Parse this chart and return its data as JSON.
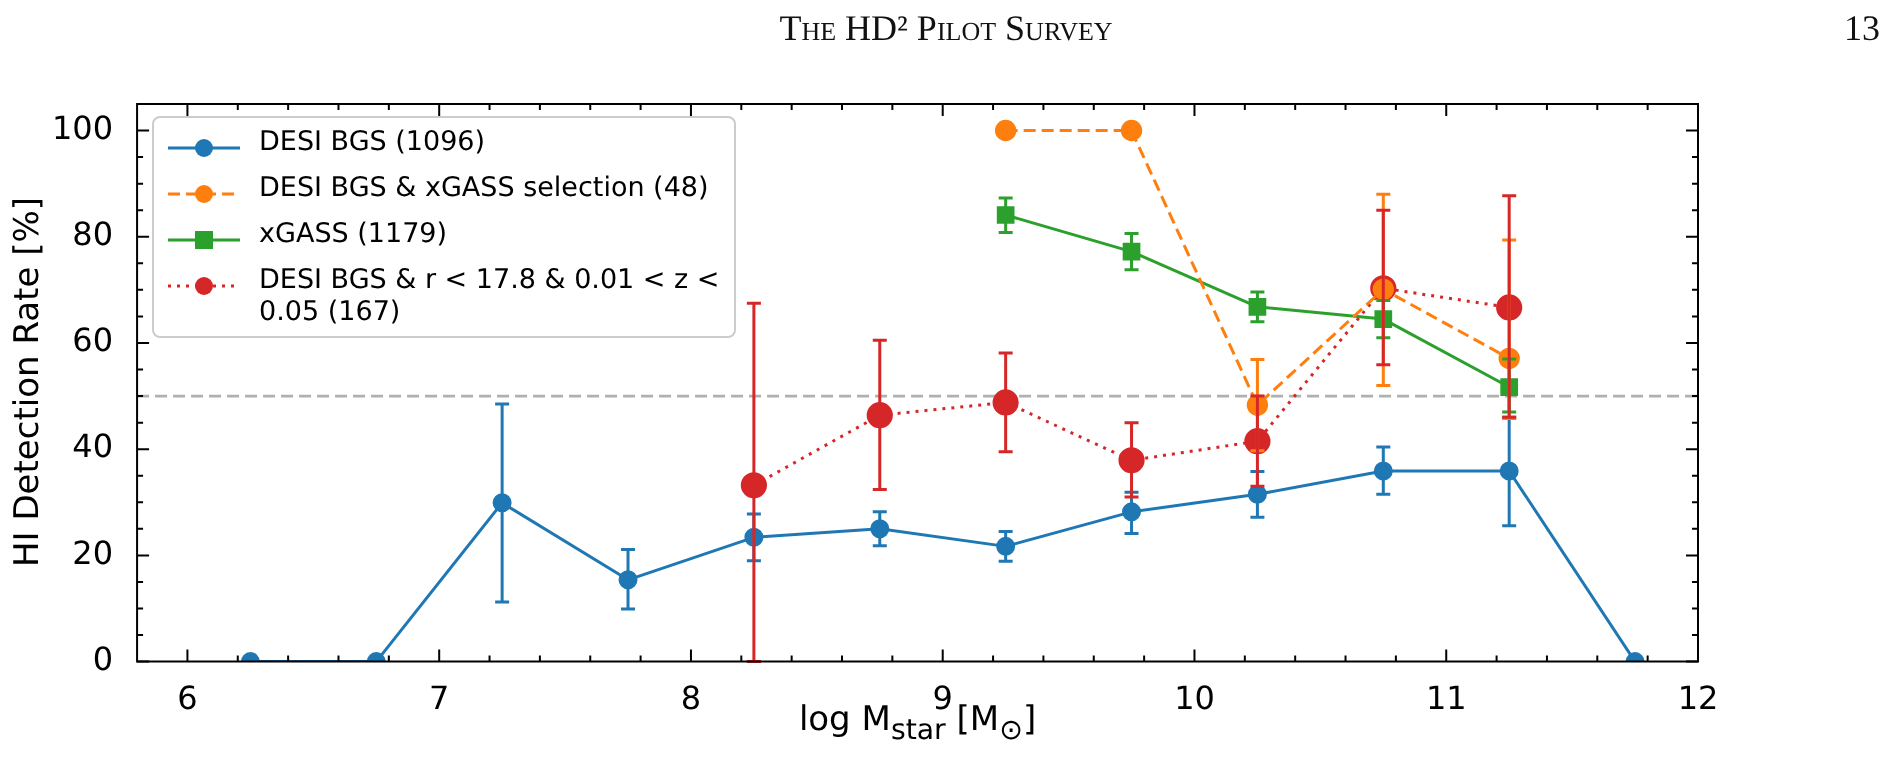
{
  "chart_data": {
    "type": "line",
    "xlabel": "log M$_{star}$ [M$_{⊙}$]",
    "ylabel": "HI Detection Rate [%]",
    "annotations": [
      "The HD² Pilot Survey",
      "13"
    ],
    "xlim": [
      5.8,
      12
    ],
    "ylim": [
      0,
      105
    ],
    "xticks": [
      6,
      {
        "value": 6.2,
        "label": null
      },
      {
        "value": 6.4,
        "label": null
      },
      {
        "value": 6.6,
        "label": null
      },
      {
        "value": 6.8,
        "label": null
      },
      7,
      {
        "value": 7.2,
        "label": null
      },
      {
        "value": 7.4,
        "label": null
      },
      {
        "value": 7.6,
        "label": null
      },
      {
        "value": 7.8,
        "label": null
      },
      8,
      {
        "value": 8.2,
        "label": null
      },
      {
        "value": 8.4,
        "label": null
      },
      {
        "value": 8.6,
        "label": null
      },
      {
        "value": 8.8,
        "label": null
      },
      9,
      {
        "value": 9.2,
        "label": null
      },
      {
        "value": 9.4,
        "label": null
      },
      {
        "value": 9.6,
        "label": null
      },
      {
        "value": 9.8,
        "label": null
      },
      10,
      {
        "value": 10.2,
        "label": null
      },
      {
        "value": 10.4,
        "label": null
      },
      {
        "value": 10.6,
        "label": null
      },
      {
        "value": 10.8,
        "label": null
      },
      11,
      {
        "value": 11.2,
        "label": null
      },
      {
        "value": 11.4,
        "label": null
      },
      {
        "value": 11.6,
        "label": null
      },
      {
        "value": 11.8,
        "label": null
      },
      12
    ],
    "yticks": [
      0,
      {
        "value": 5,
        "label": null
      },
      {
        "value": 10,
        "label": null
      },
      {
        "value": 15,
        "label": null
      },
      20,
      {
        "value": 25,
        "label": null
      },
      {
        "value": 30,
        "label": null
      },
      {
        "value": 35,
        "label": null
      },
      40,
      {
        "value": 45,
        "label": null
      },
      {
        "value": 50,
        "label": null
      },
      {
        "value": 55,
        "label": null
      },
      60,
      {
        "value": 65,
        "label": null
      },
      {
        "value": 70,
        "label": null
      },
      {
        "value": 75,
        "label": null
      },
      80,
      {
        "value": 85,
        "label": null
      },
      {
        "value": 90,
        "label": null
      },
      {
        "value": 95,
        "label": null
      },
      100
    ],
    "grid": false,
    "legend": "top left",
    "ref_lines": [
      {
        "axis": "y",
        "value": 50,
        "color": "#b0b0b0",
        "line_style": "dashed"
      }
    ],
    "series": [
      {
        "name": "DESI BGS (1096)",
        "color": "#1f77b4",
        "marker": "circle",
        "line_style": "solid",
        "x": [
          6.25,
          6.75,
          7.25,
          7.75,
          8.25,
          8.75,
          9.25,
          9.75,
          10.25,
          10.75,
          11.25,
          11.75
        ],
        "values": [
          0,
          0,
          29.9,
          15.4,
          23.4,
          25,
          21.7,
          28.2,
          31.5,
          35.9,
          35.9,
          0
        ],
        "errors": [
          null,
          null,
          [
            11.2,
            48.5
          ],
          [
            9.9,
            21.1
          ],
          [
            19,
            27.8
          ],
          [
            21.8,
            28.2
          ],
          [
            18.9,
            24.5
          ],
          [
            24.1,
            31.9
          ],
          [
            27.2,
            35.8
          ],
          [
            31.5,
            40.4
          ],
          [
            25.6,
            46
          ],
          null
        ]
      },
      {
        "name": "DESI BGS & xGASS selection (48)",
        "color": "#ff7f0e",
        "marker": "circle",
        "line_style": "dashed",
        "x": [
          9.25,
          9.75,
          10.25,
          10.75,
          11.25
        ],
        "values": [
          100,
          100,
          48.3,
          70.1,
          57.1
        ],
        "errors": [
          null,
          null,
          [
            39.7,
            56.9
          ],
          [
            52,
            88
          ],
          [
            45.8,
            79.4
          ]
        ]
      },
      {
        "name": "xGASS (1179)",
        "color": "#2ca02c",
        "marker": "square",
        "line_style": "solid",
        "x": [
          9.25,
          9.75,
          10.25,
          10.75,
          11.25
        ],
        "values": [
          84.1,
          77.2,
          66.8,
          64.5,
          51.7
        ],
        "errors": [
          [
            80.8,
            87.3
          ],
          [
            73.8,
            80.6
          ],
          [
            64,
            69.6
          ],
          [
            61,
            68
          ],
          [
            47,
            57
          ]
        ]
      },
      {
        "name": "DESI BGS & r < 17.8 & 0.01 < z < 0.05 (167)",
        "color": "#d62728",
        "marker": "circle",
        "line_style": "dotted",
        "x": [
          8.25,
          8.75,
          9.25,
          9.75,
          10.25,
          10.75,
          11.25
        ],
        "values": [
          33.2,
          46.4,
          48.8,
          37.9,
          41.5,
          70.3,
          66.7
        ],
        "errors": [
          [
            0,
            67.5
          ],
          [
            32.4,
            60.5
          ],
          [
            39.5,
            58.1
          ],
          [
            31,
            45
          ],
          [
            33,
            50
          ],
          [
            55.9,
            85
          ],
          [
            46,
            87.7
          ]
        ]
      }
    ]
  }
}
